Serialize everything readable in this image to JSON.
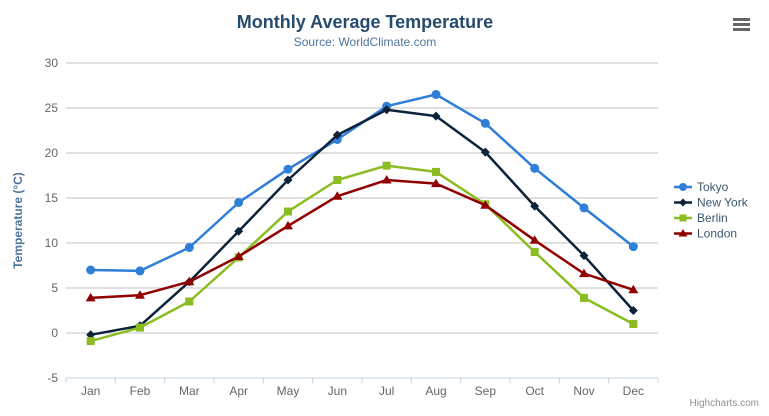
{
  "header": {
    "title": "Monthly Average Temperature",
    "subtitle": "Source: WorldClimate.com",
    "title_color": "#274b6d",
    "subtitle_color": "#4d759e"
  },
  "menu": {
    "icon": "hamburger-icon",
    "color": "#666666"
  },
  "credit": {
    "label": "Highcharts.com",
    "color": "#909090"
  },
  "chart_data": {
    "type": "line",
    "title": "Monthly Average Temperature",
    "subtitle": "Source: WorldClimate.com",
    "categories": [
      "Jan",
      "Feb",
      "Mar",
      "Apr",
      "May",
      "Jun",
      "Jul",
      "Aug",
      "Sep",
      "Oct",
      "Nov",
      "Dec"
    ],
    "series": [
      {
        "name": "Tokyo",
        "color": "#2f7ed8",
        "marker": "circle",
        "values": [
          7.0,
          6.9,
          9.5,
          14.5,
          18.2,
          21.5,
          25.2,
          26.5,
          23.3,
          18.3,
          13.9,
          9.6
        ]
      },
      {
        "name": "New York",
        "color": "#0d233a",
        "marker": "diamond",
        "values": [
          -0.2,
          0.8,
          5.7,
          11.3,
          17.0,
          22.0,
          24.8,
          24.1,
          20.1,
          14.1,
          8.6,
          2.5
        ]
      },
      {
        "name": "Berlin",
        "color": "#8bbc21",
        "marker": "square",
        "values": [
          -0.9,
          0.6,
          3.5,
          8.4,
          13.5,
          17.0,
          18.6,
          17.9,
          14.3,
          9.0,
          3.9,
          1.0
        ]
      },
      {
        "name": "London",
        "color": "#910000",
        "marker": "triangle",
        "values": [
          3.9,
          4.2,
          5.7,
          8.5,
          11.9,
          15.2,
          17.0,
          16.6,
          14.2,
          10.3,
          6.6,
          4.8
        ]
      }
    ],
    "xlabel": "",
    "ylabel": "Temperature (°C)",
    "ylim": [
      -5,
      30
    ],
    "yticks": [
      -5,
      0,
      5,
      10,
      15,
      20,
      25,
      30
    ],
    "grid": true,
    "legend_position": "right",
    "colors": {
      "grid_line": "#C0C0C0",
      "axis_line": "#C0D0E0",
      "tick_label": "#666666",
      "axis_title": "#4d759e",
      "legend_text": "#3E576F"
    }
  }
}
